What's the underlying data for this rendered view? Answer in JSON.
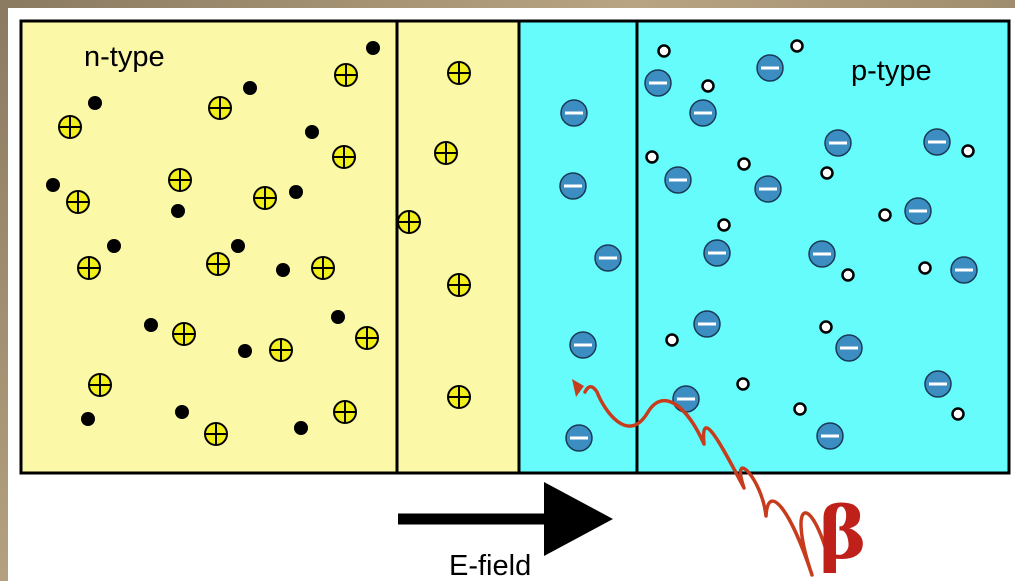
{
  "labels": {
    "n_region": "n-type",
    "p_region": "p-type",
    "field": "E-field",
    "radiation": "β"
  },
  "colors": {
    "n_fill": "#fbf8a8",
    "p_fill": "#66fcfc",
    "donor_fill": "#f2ee1c",
    "acceptor_fill": "#3c8ec2",
    "electron": "#000000",
    "hole_fill": "#ffffff",
    "beta_track": "#c63c1c"
  },
  "icons": {
    "donor": "plus-in-circle-icon",
    "acceptor": "minus-in-circle-icon",
    "electron": "filled-dot-icon",
    "hole": "open-dot-icon"
  }
}
